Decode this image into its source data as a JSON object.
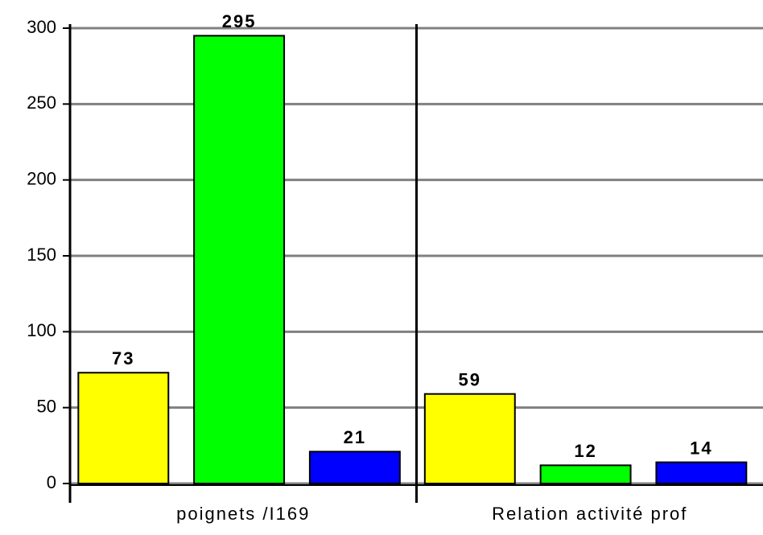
{
  "chart_data": {
    "type": "bar",
    "categories": [
      "poignets /I169",
      "Relation activité prof"
    ],
    "series": [
      {
        "color": "#ffff00",
        "values": [
          73,
          59
        ]
      },
      {
        "color": "#00ff00",
        "values": [
          295,
          12
        ]
      },
      {
        "color": "#0000ff",
        "values": [
          21,
          14
        ]
      }
    ],
    "ylim": [
      0,
      300
    ],
    "yticks": [
      0,
      50,
      100,
      150,
      200,
      250,
      300
    ],
    "grid": true
  }
}
